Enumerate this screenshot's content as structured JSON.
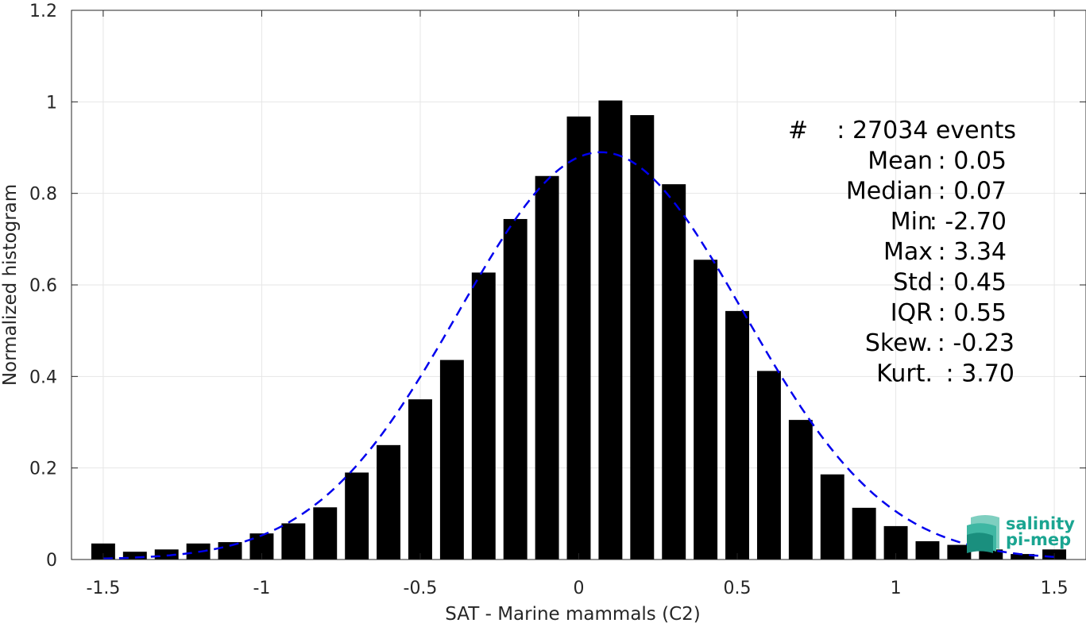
{
  "chart_data": {
    "type": "bar",
    "xlabel": "SAT - Marine mammals (C2)",
    "ylabel": "Normalized histogram",
    "xlim": [
      -1.6,
      1.6
    ],
    "ylim": [
      0,
      1.2
    ],
    "x_ticks": [
      -1.5,
      -1,
      -0.5,
      0,
      0.5,
      1,
      1.5
    ],
    "x_tick_labels": [
      "-1.5",
      "-1",
      "-0.5",
      "0",
      "0.5",
      "1",
      "1.5"
    ],
    "y_ticks": [
      0,
      0.2,
      0.4,
      0.6,
      0.8,
      1,
      1.2
    ],
    "y_tick_labels": [
      "0",
      "0.2",
      "0.4",
      "0.6",
      "0.8",
      "1",
      "1.2"
    ],
    "grid": true,
    "bar_color": "#000000",
    "bins": [
      -1.5,
      -1.4,
      -1.3,
      -1.2,
      -1.1,
      -1.0,
      -0.9,
      -0.8,
      -0.7,
      -0.6,
      -0.5,
      -0.4,
      -0.3,
      -0.2,
      -0.1,
      0.0,
      0.1,
      0.2,
      0.3,
      0.4,
      0.5,
      0.6,
      0.7,
      0.8,
      0.9,
      1.0,
      1.1,
      1.2,
      1.3,
      1.4,
      1.5
    ],
    "values": [
      0.035,
      0.017,
      0.022,
      0.035,
      0.038,
      0.057,
      0.079,
      0.114,
      0.19,
      0.25,
      0.35,
      0.436,
      0.627,
      0.744,
      0.838,
      0.968,
      1.003,
      0.971,
      0.82,
      0.655,
      0.543,
      0.412,
      0.305,
      0.186,
      0.113,
      0.073,
      0.04,
      0.032,
      0.022,
      0.012,
      0.022
    ],
    "fit_curve": {
      "type": "gaussian",
      "style": "dashed",
      "color": "#0000ee",
      "mean": 0.07,
      "std": 0.45,
      "peak": 0.89
    },
    "annotations": [
      {
        "label": "#  ",
        "value": ": 27034 events"
      },
      {
        "label": "Mean ",
        "value": ": 0.05"
      },
      {
        "label": "Median ",
        "value": ": 0.07"
      },
      {
        "label": "Min ",
        "value": ": -2.70"
      },
      {
        "label": "Max ",
        "value": ": 3.34"
      },
      {
        "label": "Std ",
        "value": ": 0.45"
      },
      {
        "label": "IQR ",
        "value": ": 0.55"
      },
      {
        "label": "Skew. ",
        "value": ": -0.23"
      },
      {
        "label": "Kurt. ",
        "value": ": 3.70"
      }
    ]
  },
  "logo": {
    "line1": "salinity",
    "line2": "pi-mep",
    "color": "#1aa591"
  }
}
